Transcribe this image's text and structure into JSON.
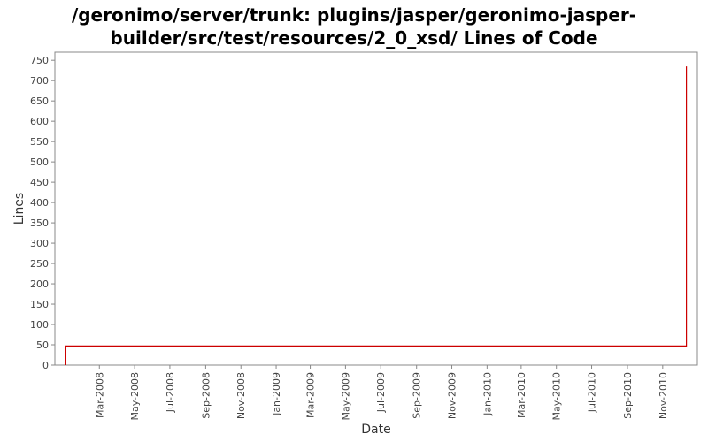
{
  "title_line1": "/geronimo/server/trunk: plugins/jasper/geronimo-jasper-",
  "title_line2": "builder/src/test/resources/2_0_xsd/ Lines of Code",
  "chart_data": {
    "type": "line",
    "title": "/geronimo/server/trunk: plugins/jasper/geronimo-jasper-builder/src/test/resources/2_0_xsd/ Lines of Code",
    "xlabel": "Date",
    "ylabel": "Lines",
    "ylim": [
      0,
      770
    ],
    "xlim": [
      "2007-12-15",
      "2010-12-31"
    ],
    "yticks": [
      0,
      50,
      100,
      150,
      200,
      250,
      300,
      350,
      400,
      450,
      500,
      550,
      600,
      650,
      700,
      750
    ],
    "xticks": [
      {
        "label": "Mar-2008",
        "date": "2008-03-01"
      },
      {
        "label": "May-2008",
        "date": "2008-05-01"
      },
      {
        "label": "Jul-2008",
        "date": "2008-07-01"
      },
      {
        "label": "Sep-2008",
        "date": "2008-09-01"
      },
      {
        "label": "Nov-2008",
        "date": "2008-11-01"
      },
      {
        "label": "Jan-2009",
        "date": "2009-01-01"
      },
      {
        "label": "Mar-2009",
        "date": "2009-03-01"
      },
      {
        "label": "May-2009",
        "date": "2009-05-01"
      },
      {
        "label": "Jul-2009",
        "date": "2009-07-01"
      },
      {
        "label": "Sep-2009",
        "date": "2009-09-01"
      },
      {
        "label": "Nov-2009",
        "date": "2009-11-01"
      },
      {
        "label": "Jan-2010",
        "date": "2010-01-01"
      },
      {
        "label": "Mar-2010",
        "date": "2010-03-01"
      },
      {
        "label": "May-2010",
        "date": "2010-05-01"
      },
      {
        "label": "Jul-2010",
        "date": "2010-07-01"
      },
      {
        "label": "Sep-2010",
        "date": "2010-09-01"
      },
      {
        "label": "Nov-2010",
        "date": "2010-11-01"
      }
    ],
    "grid": false,
    "series": [
      {
        "color": "#cc0000",
        "points": [
          {
            "x": "2008-01-03",
            "y": 0
          },
          {
            "x": "2008-01-03",
            "y": 47
          },
          {
            "x": "2010-12-12",
            "y": 47
          },
          {
            "x": "2010-12-12",
            "y": 735
          }
        ]
      }
    ]
  }
}
